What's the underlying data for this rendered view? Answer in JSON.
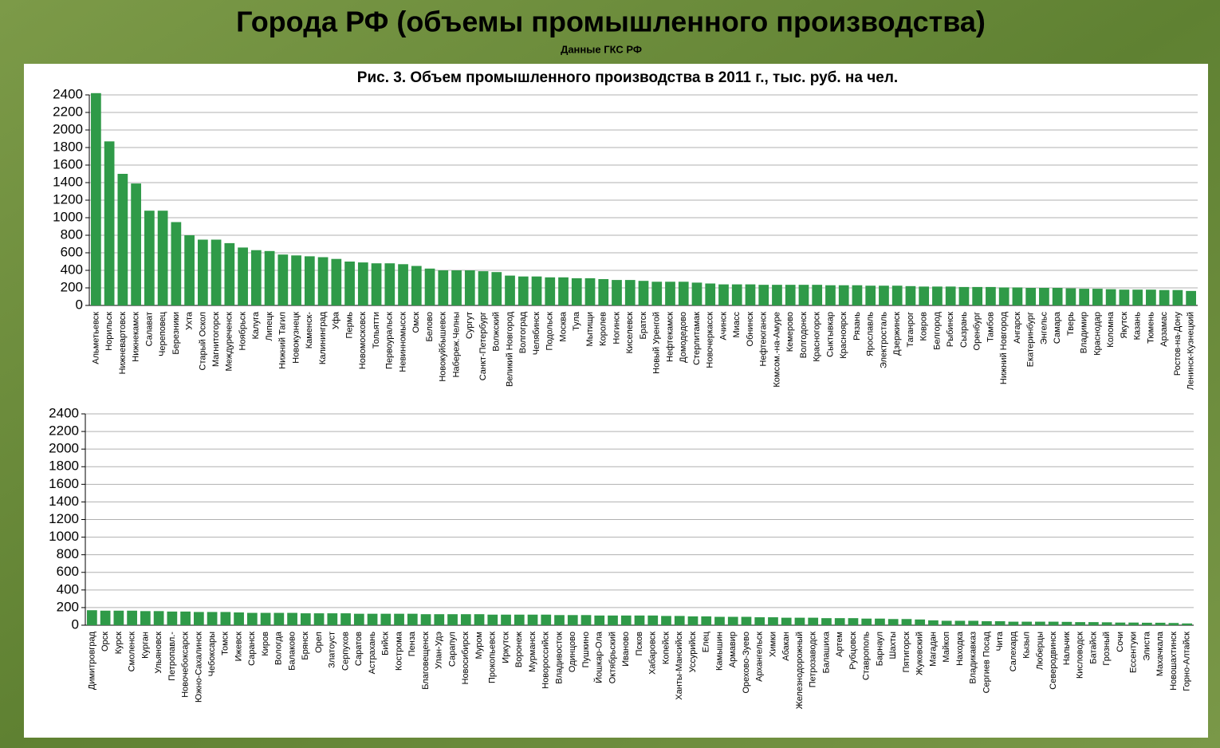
{
  "header": {
    "title": "Города РФ (объемы промышленного производства)",
    "subtitle": "Данные ГКС РФ"
  },
  "chart_data": [
    {
      "type": "bar",
      "title": "Рис. 3. Объем промышленного производства в 2011 г., тыс. руб. на чел.",
      "color": "#2f9a48",
      "grid": true,
      "ylim": [
        0,
        2400
      ],
      "yticks": [
        0,
        200,
        400,
        600,
        800,
        1000,
        1200,
        1400,
        1600,
        1800,
        2000,
        2200,
        2400
      ],
      "categories": [
        "Альметьевск",
        "Норильск",
        "Нижневартовск",
        "Нижнекамск",
        "Салават",
        "Череповец",
        "Березники",
        "Ухта",
        "Старый Оскол",
        "Магнитогорск",
        "Междуреченск",
        "Ноябрьск",
        "Калуга",
        "Липецк",
        "Нижний Тагил",
        "Новокузнецк",
        "Каменск-",
        "Калининград",
        "Уфа",
        "Пермь",
        "Новомосковск",
        "Тольятти",
        "Первоуральск",
        "Невинномысск",
        "Омск",
        "Белово",
        "Новокуйбышевск",
        "Набереж.Челны",
        "Сургут",
        "Санкт-Петербург",
        "Волжский",
        "Великий Новгород",
        "Волгоград",
        "Челябинск",
        "Подольск",
        "Москва",
        "Тула",
        "Мытищи",
        "Королев",
        "Ногинск",
        "Киселевск",
        "Братск",
        "Новый Уренгой",
        "Нефтекамск",
        "Домодедово",
        "Стерлитамак",
        "Новочеркасск",
        "Ачинск",
        "Миасс",
        "Обнинск",
        "Нефтеюганск",
        "Комсом.-на-Амуре",
        "Кемерово",
        "Волгодонск",
        "Красногорск",
        "Сыктывкар",
        "Красноярск",
        "Рязань",
        "Ярославль",
        "Электросталь",
        "Дзержинск",
        "Таганрог",
        "Ковров",
        "Белгород",
        "Рыбинск",
        "Сызрань",
        "Оренбург",
        "Тамбов",
        "Нижний Новгород",
        "Ангарск",
        "Екатеринбург",
        "Энгельс",
        "Самара",
        "Тверь",
        "Владимир",
        "Краснодар",
        "Коломна",
        "Якутск",
        "Казань",
        "Тюмень",
        "Арзамас",
        "Ростов-на-Дону",
        "Ленинск-Кузнецкий"
      ],
      "values": [
        2420,
        1870,
        1500,
        1390,
        1080,
        1080,
        950,
        800,
        750,
        750,
        710,
        660,
        630,
        620,
        580,
        570,
        560,
        550,
        530,
        500,
        490,
        480,
        480,
        470,
        450,
        420,
        400,
        400,
        400,
        390,
        380,
        340,
        330,
        330,
        320,
        320,
        310,
        310,
        300,
        290,
        290,
        280,
        270,
        270,
        270,
        260,
        250,
        240,
        240,
        240,
        235,
        235,
        235,
        235,
        235,
        230,
        230,
        230,
        225,
        225,
        225,
        220,
        215,
        215,
        215,
        210,
        210,
        210,
        205,
        205,
        200,
        200,
        200,
        195,
        190,
        190,
        185,
        180,
        180,
        180,
        175,
        175,
        165
      ]
    },
    {
      "type": "bar",
      "color": "#2f9a48",
      "grid": true,
      "ylim": [
        0,
        2400
      ],
      "yticks": [
        0,
        200,
        400,
        600,
        800,
        1000,
        1200,
        1400,
        1600,
        1800,
        2000,
        2200,
        2400
      ],
      "categories": [
        "Димитровград",
        "Орск",
        "Курск",
        "Смоленск",
        "Курган",
        "Ульяновск",
        "Петропавл.-",
        "Новочебоксарск",
        "Южно-Сахалинск",
        "Чебоксары",
        "Томск",
        "Ижевск",
        "Саранск",
        "Киров",
        "Вологда",
        "Балаково",
        "Брянск",
        "Орел",
        "Златоуст",
        "Серпухов",
        "Саратов",
        "Астрахань",
        "Бийск",
        "Кострома",
        "Пенза",
        "Благовещенск",
        "Улан-Удэ",
        "Сарапул",
        "Новосибирск",
        "Муром",
        "Прокопьевск",
        "Иркутск",
        "Воронеж",
        "Мурманск",
        "Новороссийск",
        "Владивосток",
        "Одинцово",
        "Пушкино",
        "Йошкар-Ола",
        "Октябрьский",
        "Иваново",
        "Псков",
        "Хабаровск",
        "Копейск",
        "Ханты-Мансийск",
        "Уссурийск",
        "Елец",
        "Камышин",
        "Армавир",
        "Орехово-Зуево",
        "Архангельск",
        "Химки",
        "Абакан",
        "Железнодорожный",
        "Петрозаводск",
        "Балашиха",
        "Артем",
        "Рубцовск",
        "Ставрополь",
        "Барнаул",
        "Шахты",
        "Пятигорск",
        "Жуковский",
        "Магадан",
        "Майкоп",
        "Находка",
        "Владикавказ",
        "Сергиев Посад",
        "Чита",
        "Салехард",
        "Кызыл",
        "Люберцы",
        "Северодвинск",
        "Нальчик",
        "Кисловодск",
        "Батайск",
        "Грозный",
        "Сочи",
        "Ессентуки",
        "Элиста",
        "Махачкала",
        "Новошахтинск",
        "Горно-Алтайск"
      ],
      "values": [
        170,
        165,
        165,
        165,
        160,
        160,
        155,
        155,
        150,
        150,
        150,
        145,
        140,
        140,
        140,
        140,
        135,
        135,
        135,
        135,
        130,
        130,
        130,
        130,
        130,
        125,
        125,
        125,
        125,
        125,
        120,
        120,
        120,
        120,
        120,
        115,
        115,
        115,
        110,
        110,
        110,
        110,
        110,
        105,
        105,
        100,
        100,
        95,
        95,
        95,
        90,
        90,
        85,
        85,
        85,
        80,
        80,
        80,
        75,
        75,
        70,
        70,
        65,
        55,
        50,
        50,
        50,
        45,
        45,
        40,
        40,
        40,
        40,
        38,
        35,
        35,
        33,
        30,
        30,
        28,
        28,
        25,
        20
      ]
    }
  ]
}
